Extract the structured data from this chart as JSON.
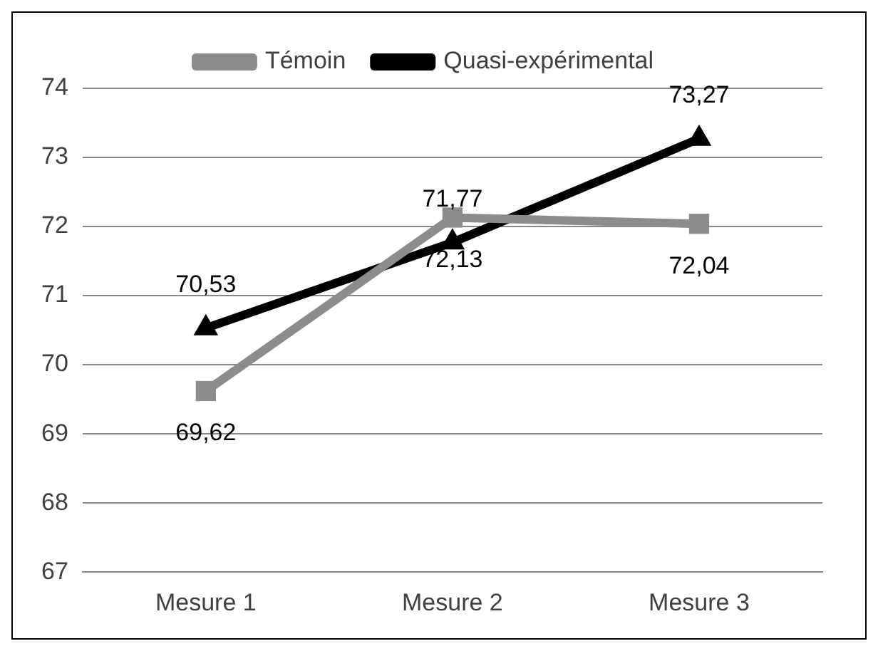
{
  "chart_data": {
    "type": "line",
    "categories": [
      "Mesure 1",
      "Mesure 2",
      "Mesure 3"
    ],
    "series": [
      {
        "name": "Témoin",
        "color": "#8c8c8c",
        "marker": "square",
        "values": [
          69.62,
          72.13,
          72.04
        ],
        "value_labels": [
          "69,62",
          "72,13",
          "72,04"
        ]
      },
      {
        "name": "Quasi-expérimental",
        "color": "#000000",
        "marker": "triangle",
        "values": [
          70.53,
          71.77,
          73.27
        ],
        "value_labels": [
          "70,53",
          "71,77",
          "73,27"
        ]
      }
    ],
    "ylim": [
      67,
      74
    ],
    "yticks": [
      67,
      68,
      69,
      70,
      71,
      72,
      73,
      74
    ],
    "grid": "y",
    "legend": "top"
  }
}
